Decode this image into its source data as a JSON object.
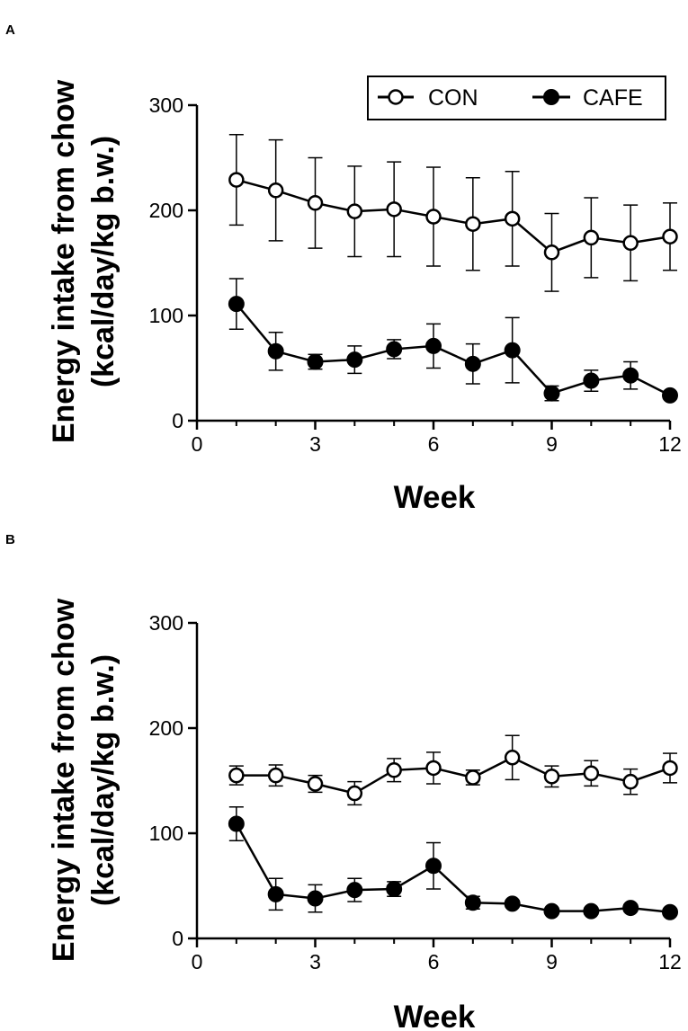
{
  "chart_data": [
    {
      "panel": "A",
      "type": "line",
      "ylabel_line1": "Energy intake from chow",
      "ylabel_line2": "(kcal/day/kg b.w.)",
      "xlabel": "Week",
      "xlim": [
        0,
        12
      ],
      "ylim": [
        0,
        300
      ],
      "xticks": [
        0,
        3,
        6,
        9,
        12
      ],
      "yticks": [
        0,
        100,
        200,
        300
      ],
      "legend": {
        "position": "top-right",
        "entries": [
          "CON",
          "CAFE"
        ]
      },
      "x": [
        1,
        2,
        3,
        4,
        5,
        6,
        7,
        8,
        9,
        10,
        11,
        12
      ],
      "series": [
        {
          "name": "CON",
          "marker": "open-circle",
          "values": [
            229,
            219,
            207,
            199,
            201,
            194,
            187,
            192,
            160,
            174,
            169,
            175
          ],
          "errors": [
            43,
            48,
            43,
            43,
            45,
            47,
            44,
            45,
            37,
            38,
            36,
            32
          ]
        },
        {
          "name": "CAFE",
          "marker": "filled-circle",
          "values": [
            111,
            66,
            56,
            58,
            68,
            71,
            54,
            67,
            26,
            38,
            43,
            24
          ],
          "errors": [
            24,
            18,
            7,
            13,
            9,
            21,
            19,
            31,
            7,
            10,
            13,
            3
          ]
        }
      ]
    },
    {
      "panel": "B",
      "type": "line",
      "ylabel_line1": "Energy intake from chow",
      "ylabel_line2": "(kcal/day/kg b.w.)",
      "xlabel": "Week",
      "xlim": [
        0,
        12
      ],
      "ylim": [
        0,
        300
      ],
      "xticks": [
        0,
        3,
        6,
        9,
        12
      ],
      "yticks": [
        0,
        100,
        200,
        300
      ],
      "x": [
        1,
        2,
        3,
        4,
        5,
        6,
        7,
        8,
        9,
        10,
        11,
        12
      ],
      "series": [
        {
          "name": "CON",
          "marker": "open-circle",
          "values": [
            155,
            155,
            147,
            138,
            160,
            162,
            153,
            172,
            154,
            157,
            149,
            162
          ],
          "errors": [
            9,
            10,
            8,
            11,
            11,
            15,
            7,
            21,
            10,
            12,
            12,
            14
          ]
        },
        {
          "name": "CAFE",
          "marker": "filled-circle",
          "values": [
            109,
            42,
            38,
            46,
            47,
            69,
            34,
            33,
            26,
            26,
            29,
            25
          ],
          "errors": [
            16,
            15,
            13,
            11,
            7,
            22,
            6,
            3,
            3,
            3,
            3,
            3
          ]
        }
      ]
    }
  ]
}
